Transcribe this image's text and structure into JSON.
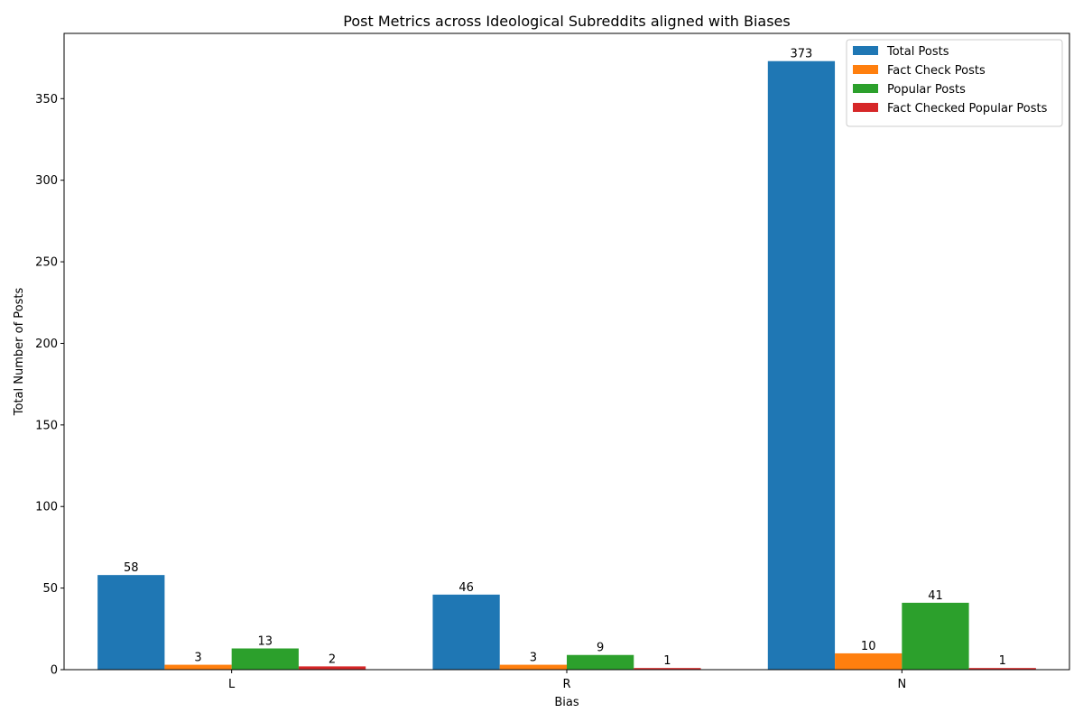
{
  "chart_data": {
    "type": "bar",
    "title": "Post Metrics across Ideological Subreddits aligned with Biases",
    "xlabel": "Bias",
    "ylabel": "Total Number of Posts",
    "categories": [
      "L",
      "R",
      "N"
    ],
    "ylim": [
      0,
      390
    ],
    "yticks": [
      0,
      50,
      100,
      150,
      200,
      250,
      300,
      350
    ],
    "grid": false,
    "legend_position": "top-right",
    "series": [
      {
        "name": "Total Posts",
        "color": "#1f77b4",
        "values": [
          58,
          46,
          373
        ]
      },
      {
        "name": "Fact Check Posts",
        "color": "#ff7f0e",
        "values": [
          3,
          3,
          10
        ]
      },
      {
        "name": "Popular Posts",
        "color": "#2ca02c",
        "values": [
          13,
          9,
          41
        ]
      },
      {
        "name": "Fact Checked Popular Posts",
        "color": "#d62728",
        "values": [
          2,
          1,
          1
        ]
      }
    ]
  }
}
